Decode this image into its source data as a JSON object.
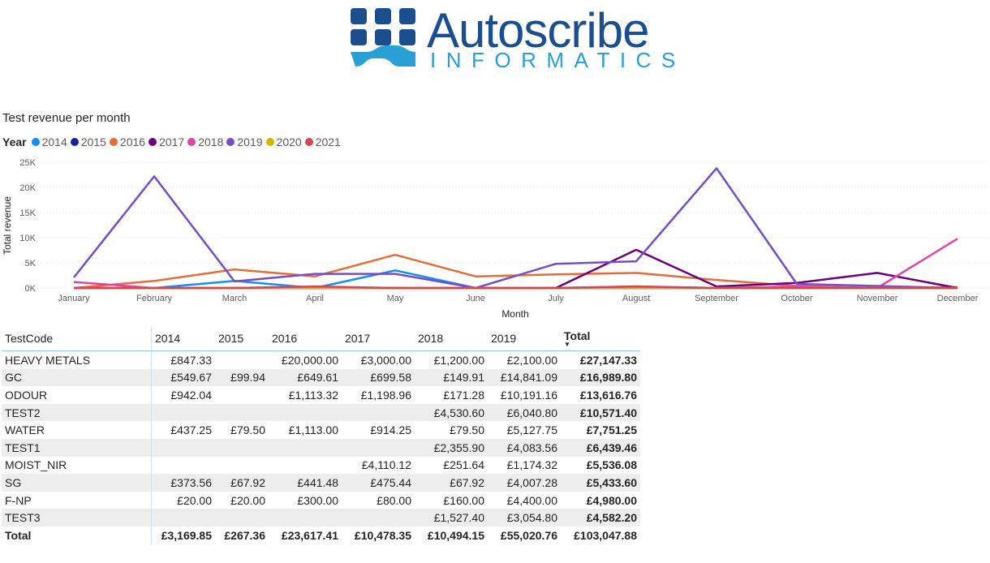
{
  "logo": {
    "word": "Autoscribe",
    "sub": "INFORMATICS"
  },
  "chart_data": {
    "type": "line",
    "title": "Test revenue per month",
    "legend_title": "Year",
    "xlabel": "Month",
    "ylabel": "Total revenue",
    "ylim": [
      0,
      25000
    ],
    "yticks": [
      "0K",
      "5K",
      "10K",
      "15K",
      "20K",
      "25K"
    ],
    "grid": true,
    "legend_position": "top-left",
    "categories": [
      "January",
      "February",
      "March",
      "April",
      "May",
      "June",
      "July",
      "August",
      "September",
      "October",
      "November",
      "December"
    ],
    "series": [
      {
        "name": "2014",
        "color": "#118dff",
        "values": [
          0,
          0,
          1400,
          0,
          3500,
          0,
          0,
          0,
          0,
          0,
          0,
          0
        ]
      },
      {
        "name": "2015",
        "color": "#12239e",
        "values": [
          0,
          0,
          0,
          0,
          0,
          0,
          0,
          0,
          0,
          0,
          0,
          0
        ]
      },
      {
        "name": "2016",
        "color": "#e66c37",
        "values": [
          0,
          1400,
          3700,
          2300,
          6600,
          2300,
          2700,
          3000,
          1600,
          400,
          0,
          200
        ]
      },
      {
        "name": "2017",
        "color": "#6b007b",
        "values": [
          0,
          0,
          0,
          0,
          0,
          0,
          0,
          7600,
          300,
          1000,
          3000,
          0
        ]
      },
      {
        "name": "2018",
        "color": "#e044a7",
        "values": [
          1200,
          0,
          0,
          0,
          0,
          0,
          0,
          300,
          0,
          300,
          0,
          9800
        ]
      },
      {
        "name": "2019",
        "color": "#744ec2",
        "values": [
          2100,
          22200,
          1300,
          2800,
          2800,
          0,
          4800,
          5300,
          23800,
          800,
          400,
          0
        ]
      },
      {
        "name": "2020",
        "color": "#d9b300",
        "values": [
          0,
          0,
          0,
          0,
          0,
          0,
          0,
          0,
          0,
          0,
          0,
          0
        ]
      },
      {
        "name": "2021",
        "color": "#d64550",
        "values": [
          0,
          0,
          0,
          300,
          0,
          0,
          0,
          300,
          0,
          0,
          0,
          0
        ]
      }
    ]
  },
  "table": {
    "headers": [
      "TestCode",
      "2014",
      "2015",
      "2016",
      "2017",
      "2018",
      "2019",
      "Total"
    ],
    "rows": [
      [
        "HEAVY METALS",
        "£847.33",
        "",
        "£20,000.00",
        "£3,000.00",
        "£1,200.00",
        "£2,100.00",
        "£27,147.33"
      ],
      [
        "GC",
        "£549.67",
        "£99.94",
        "£649.61",
        "£699.58",
        "£149.91",
        "£14,841.09",
        "£16,989.80"
      ],
      [
        "ODOUR",
        "£942.04",
        "",
        "£1,113.32",
        "£1,198.96",
        "£171.28",
        "£10,191.16",
        "£13,616.76"
      ],
      [
        "TEST2",
        "",
        "",
        "",
        "",
        "£4,530.60",
        "£6,040.80",
        "£10,571.40"
      ],
      [
        "WATER",
        "£437.25",
        "£79.50",
        "£1,113.00",
        "£914.25",
        "£79.50",
        "£5,127.75",
        "£7,751.25"
      ],
      [
        "TEST1",
        "",
        "",
        "",
        "",
        "£2,355.90",
        "£4,083.56",
        "£6,439.46"
      ],
      [
        "MOIST_NIR",
        "",
        "",
        "",
        "£4,110.12",
        "£251.64",
        "£1,174.32",
        "£5,536.08"
      ],
      [
        "SG",
        "£373.56",
        "£67.92",
        "£441.48",
        "£475.44",
        "£67.92",
        "£4,007.28",
        "£5,433.60"
      ],
      [
        "F-NP",
        "£20.00",
        "£20.00",
        "£300.00",
        "£80.00",
        "£160.00",
        "£4,400.00",
        "£4,980.00"
      ],
      [
        "TEST3",
        "",
        "",
        "",
        "",
        "£1,527.40",
        "£3,054.80",
        "£4,582.20"
      ]
    ],
    "total_row": [
      "Total",
      "£3,169.85",
      "£267.36",
      "£23,617.41",
      "£10,478.35",
      "£10,494.15",
      "£55,020.76",
      "£103,047.88"
    ]
  }
}
